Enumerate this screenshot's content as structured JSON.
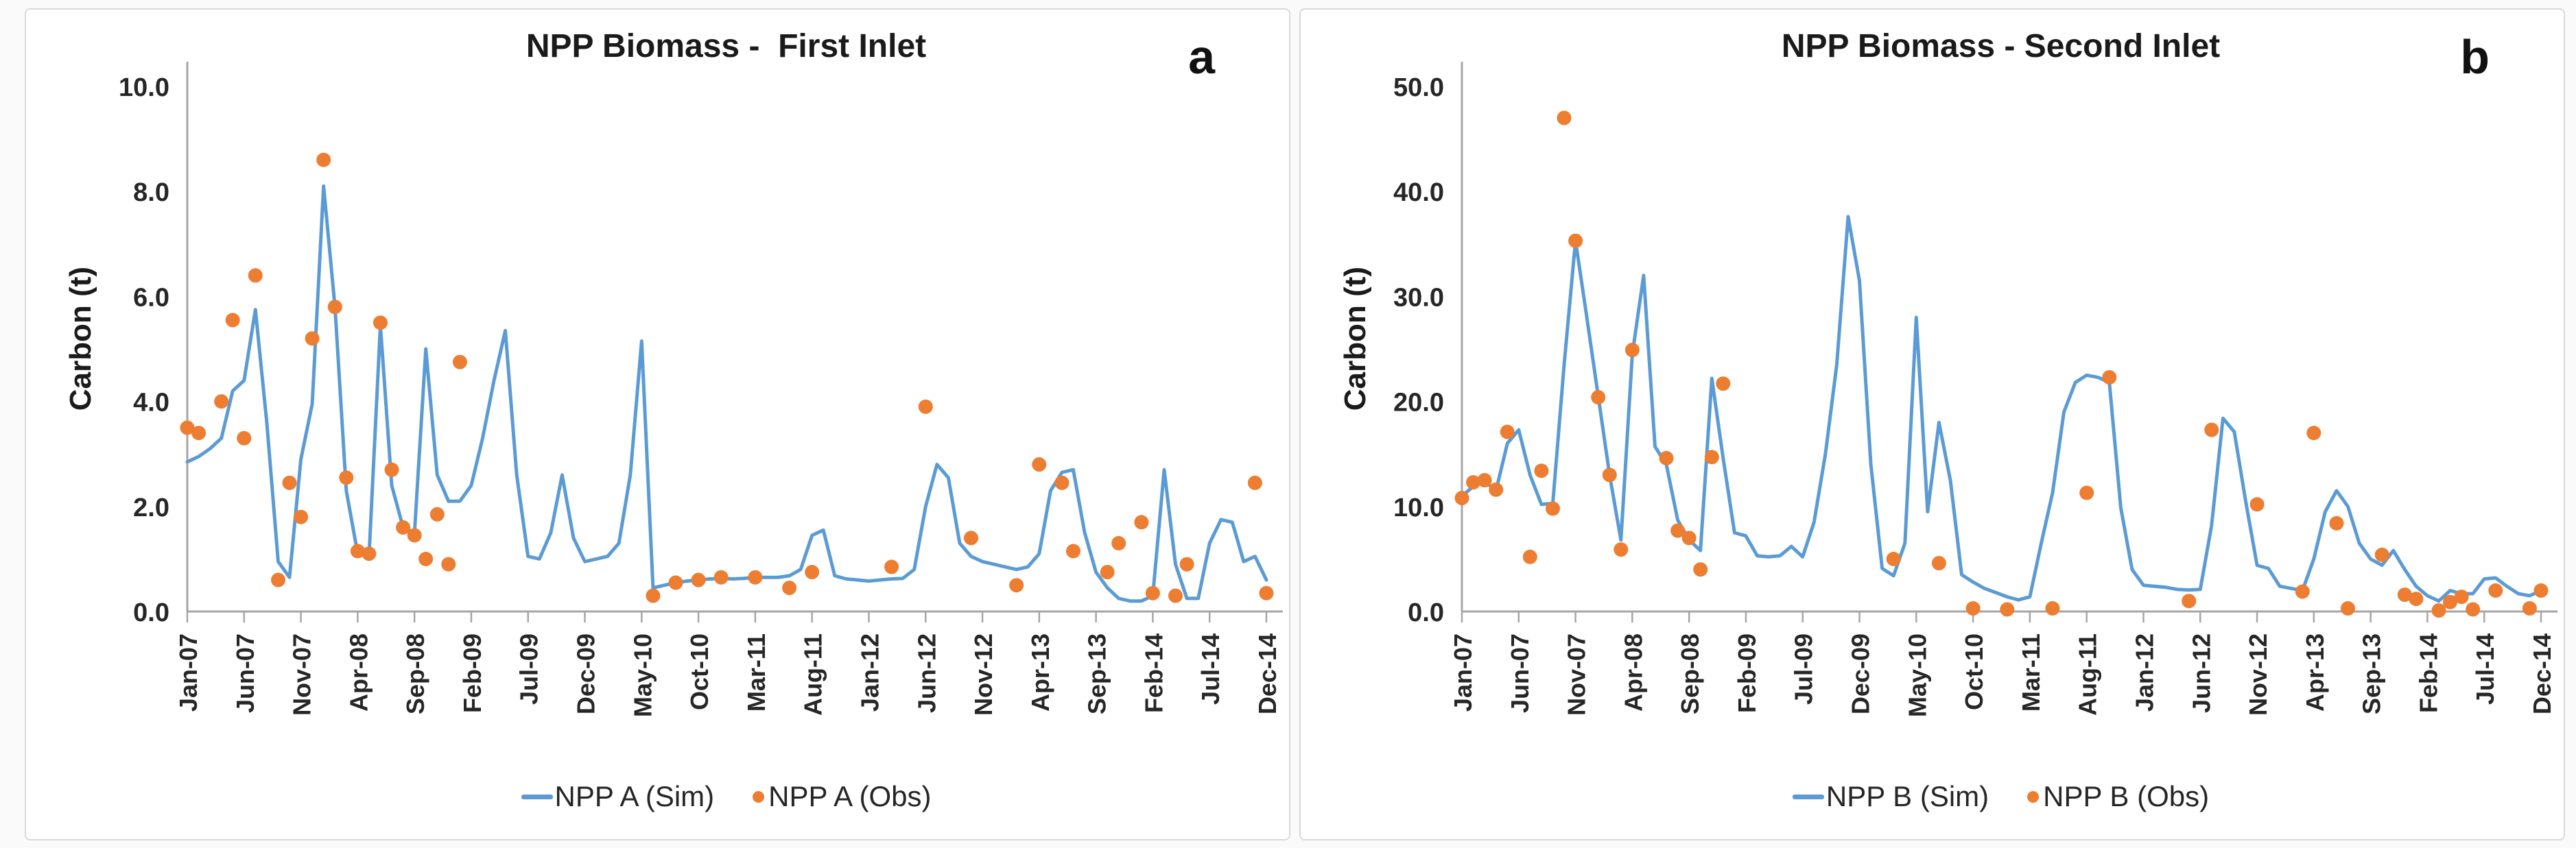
{
  "colors": {
    "sim_line": "#5B9BD5",
    "obs_dot": "#ED7D31",
    "axis": "#a6a6a6",
    "text": "#262626",
    "title_text": "#1a1a1a",
    "panel_border": "#d9d9d9",
    "panel_background": "#ffffff"
  },
  "chart_data": [
    {
      "type": "line+scatter",
      "panel_label": "a",
      "title": "NPP Biomass -  First Inlet",
      "xlabel": "",
      "ylabel": "Carbon (t)",
      "ylim": [
        0,
        10
      ],
      "y_tick_values": [
        0,
        2,
        4,
        6,
        8,
        10
      ],
      "y_ticks": [
        "0.0",
        "2.0",
        "4.0",
        "6.0",
        "8.0",
        "10.0"
      ],
      "x_tick_labels": [
        "Jan-07",
        "Jun-07",
        "Nov-07",
        "Apr-08",
        "Sep-08",
        "Feb-09",
        "Jul-09",
        "Dec-09",
        "May-10",
        "Oct-10",
        "Mar-11",
        "Aug-11",
        "Jan-12",
        "Jun-12",
        "Nov-12",
        "Apr-13",
        "Sep-13",
        "Feb-14",
        "Jul-14",
        "Dec-14"
      ],
      "grid": false,
      "legend_position": "bottom",
      "months": [
        "Jan-07",
        "Feb-07",
        "Mar-07",
        "Apr-07",
        "May-07",
        "Jun-07",
        "Jul-07",
        "Aug-07",
        "Sep-07",
        "Oct-07",
        "Nov-07",
        "Dec-07",
        "Jan-08",
        "Feb-08",
        "Mar-08",
        "Apr-08",
        "May-08",
        "Jun-08",
        "Jul-08",
        "Aug-08",
        "Sep-08",
        "Oct-08",
        "Nov-08",
        "Dec-08",
        "Jan-09",
        "Feb-09",
        "Mar-09",
        "Apr-09",
        "May-09",
        "Jun-09",
        "Jul-09",
        "Aug-09",
        "Sep-09",
        "Oct-09",
        "Nov-09",
        "Dec-09",
        "Jan-10",
        "Feb-10",
        "Mar-10",
        "Apr-10",
        "May-10",
        "Jun-10",
        "Jul-10",
        "Aug-10",
        "Sep-10",
        "Oct-10",
        "Nov-10",
        "Dec-10",
        "Jan-11",
        "Feb-11",
        "Mar-11",
        "Apr-11",
        "May-11",
        "Jun-11",
        "Jul-11",
        "Aug-11",
        "Sep-11",
        "Oct-11",
        "Nov-11",
        "Dec-11",
        "Jan-12",
        "Feb-12",
        "Mar-12",
        "Apr-12",
        "May-12",
        "Jun-12",
        "Jul-12",
        "Aug-12",
        "Sep-12",
        "Oct-12",
        "Nov-12",
        "Dec-12",
        "Jan-13",
        "Feb-13",
        "Mar-13",
        "Apr-13",
        "May-13",
        "Jun-13",
        "Jul-13",
        "Aug-13",
        "Sep-13",
        "Oct-13",
        "Nov-13",
        "Dec-13",
        "Jan-14",
        "Feb-14",
        "Mar-14",
        "Apr-14",
        "May-14",
        "Jun-14",
        "Jul-14",
        "Aug-14",
        "Sep-14",
        "Oct-14",
        "Nov-14",
        "Dec-14"
      ],
      "series": [
        {
          "name": "NPP A (Sim)",
          "type": "line",
          "color": "#5B9BD5",
          "values": [
            2.85,
            2.95,
            3.1,
            3.3,
            4.2,
            4.4,
            5.75,
            3.6,
            0.95,
            0.65,
            2.9,
            3.95,
            8.1,
            5.8,
            2.3,
            1.1,
            1.05,
            5.45,
            2.4,
            1.6,
            1.5,
            5.0,
            2.6,
            2.1,
            2.1,
            2.4,
            3.3,
            4.4,
            5.35,
            2.6,
            1.05,
            1.0,
            1.5,
            2.6,
            1.4,
            0.95,
            1.0,
            1.05,
            1.3,
            2.6,
            5.15,
            0.45,
            0.5,
            0.55,
            0.58,
            0.6,
            0.62,
            0.63,
            0.62,
            0.63,
            0.65,
            0.65,
            0.65,
            0.68,
            0.8,
            1.45,
            1.55,
            0.68,
            0.62,
            0.6,
            0.58,
            0.6,
            0.62,
            0.63,
            0.8,
            2.0,
            2.8,
            2.55,
            1.3,
            1.05,
            0.95,
            0.9,
            0.85,
            0.8,
            0.85,
            1.1,
            2.3,
            2.65,
            2.7,
            1.5,
            0.75,
            0.45,
            0.25,
            0.2,
            0.2,
            0.3,
            2.7,
            0.9,
            0.25,
            0.25,
            1.3,
            1.75,
            1.7,
            0.95,
            1.05,
            0.6
          ]
        },
        {
          "name": "NPP A (Obs)",
          "type": "scatter",
          "color": "#ED7D31",
          "points": [
            [
              "Jan-07",
              3.5
            ],
            [
              "Feb-07",
              3.4
            ],
            [
              "Apr-07",
              4.0
            ],
            [
              "May-07",
              5.55
            ],
            [
              "Jun-07",
              3.3
            ],
            [
              "Jul-07",
              6.4
            ],
            [
              "Sep-07",
              0.6
            ],
            [
              "Oct-07",
              2.45
            ],
            [
              "Nov-07",
              1.8
            ],
            [
              "Dec-07",
              5.2
            ],
            [
              "Jan-08",
              8.6
            ],
            [
              "Feb-08",
              5.8
            ],
            [
              "Mar-08",
              2.55
            ],
            [
              "Apr-08",
              1.15
            ],
            [
              "May-08",
              1.1
            ],
            [
              "Jun-08",
              5.5
            ],
            [
              "Jul-08",
              2.7
            ],
            [
              "Aug-08",
              1.6
            ],
            [
              "Sep-08",
              1.45
            ],
            [
              "Oct-08",
              1.0
            ],
            [
              "Nov-08",
              1.85
            ],
            [
              "Dec-08",
              0.9
            ],
            [
              "Jan-09",
              4.75
            ],
            [
              "Jun-10",
              0.3
            ],
            [
              "Aug-10",
              0.55
            ],
            [
              "Oct-10",
              0.6
            ],
            [
              "Dec-10",
              0.65
            ],
            [
              "Mar-11",
              0.65
            ],
            [
              "Jun-11",
              0.45
            ],
            [
              "Aug-11",
              0.75
            ],
            [
              "Mar-12",
              0.85
            ],
            [
              "Jun-12",
              3.9
            ],
            [
              "Oct-12",
              1.4
            ],
            [
              "Feb-13",
              0.5
            ],
            [
              "Apr-13",
              2.8
            ],
            [
              "Jun-13",
              2.45
            ],
            [
              "Jul-13",
              1.15
            ],
            [
              "Oct-13",
              0.75
            ],
            [
              "Nov-13",
              1.3
            ],
            [
              "Jan-14",
              1.7
            ],
            [
              "Feb-14",
              0.35
            ],
            [
              "Apr-14",
              0.3
            ],
            [
              "May-14",
              0.9
            ],
            [
              "Nov-14",
              2.45
            ],
            [
              "Dec-14",
              0.35
            ]
          ]
        }
      ]
    },
    {
      "type": "line+scatter",
      "panel_label": "b",
      "title": "NPP Biomass - Second Inlet",
      "xlabel": "",
      "ylabel": "Carbon (t)",
      "ylim": [
        0,
        50
      ],
      "y_tick_values": [
        0,
        10,
        20,
        30,
        40,
        50
      ],
      "y_ticks": [
        "0.0",
        "10.0",
        "20.0",
        "30.0",
        "40.0",
        "50.0"
      ],
      "x_tick_labels": [
        "Jan-07",
        "Jun-07",
        "Nov-07",
        "Apr-08",
        "Sep-08",
        "Feb-09",
        "Jul-09",
        "Dec-09",
        "May-10",
        "Oct-10",
        "Mar-11",
        "Aug-11",
        "Jan-12",
        "Jun-12",
        "Nov-12",
        "Apr-13",
        "Sep-13",
        "Feb-14",
        "Jul-14",
        "Dec-14"
      ],
      "grid": false,
      "legend_position": "bottom",
      "months": [
        "Jan-07",
        "Feb-07",
        "Mar-07",
        "Apr-07",
        "May-07",
        "Jun-07",
        "Jul-07",
        "Aug-07",
        "Sep-07",
        "Oct-07",
        "Nov-07",
        "Dec-07",
        "Jan-08",
        "Feb-08",
        "Mar-08",
        "Apr-08",
        "May-08",
        "Jun-08",
        "Jul-08",
        "Aug-08",
        "Sep-08",
        "Oct-08",
        "Nov-08",
        "Dec-08",
        "Jan-09",
        "Feb-09",
        "Mar-09",
        "Apr-09",
        "May-09",
        "Jun-09",
        "Jul-09",
        "Aug-09",
        "Sep-09",
        "Oct-09",
        "Nov-09",
        "Dec-09",
        "Jan-10",
        "Feb-10",
        "Mar-10",
        "Apr-10",
        "May-10",
        "Jun-10",
        "Jul-10",
        "Aug-10",
        "Sep-10",
        "Oct-10",
        "Nov-10",
        "Dec-10",
        "Jan-11",
        "Feb-11",
        "Mar-11",
        "Apr-11",
        "May-11",
        "Jun-11",
        "Jul-11",
        "Aug-11",
        "Sep-11",
        "Oct-11",
        "Nov-11",
        "Dec-11",
        "Jan-12",
        "Feb-12",
        "Mar-12",
        "Apr-12",
        "May-12",
        "Jun-12",
        "Jul-12",
        "Aug-12",
        "Sep-12",
        "Oct-12",
        "Nov-12",
        "Dec-12",
        "Jan-13",
        "Feb-13",
        "Mar-13",
        "Apr-13",
        "May-13",
        "Jun-13",
        "Jul-13",
        "Aug-13",
        "Sep-13",
        "Oct-13",
        "Nov-13",
        "Dec-13",
        "Jan-14",
        "Feb-14",
        "Mar-14",
        "Apr-14",
        "May-14",
        "Jun-14",
        "Jul-14",
        "Aug-14",
        "Sep-14",
        "Oct-14",
        "Nov-14",
        "Dec-14"
      ],
      "series": [
        {
          "name": "NPP B (Sim)",
          "type": "line",
          "color": "#5B9BD5",
          "values": [
            11.0,
            11.9,
            12.4,
            11.5,
            16.0,
            17.3,
            13.0,
            10.2,
            10.3,
            23.5,
            35.3,
            28.0,
            20.5,
            13.0,
            6.8,
            24.5,
            32.0,
            15.7,
            14.0,
            8.7,
            6.8,
            5.8,
            22.2,
            14.6,
            7.5,
            7.2,
            5.3,
            5.2,
            5.3,
            6.2,
            5.2,
            8.5,
            15.0,
            23.5,
            37.6,
            31.5,
            14.0,
            4.1,
            3.4,
            6.5,
            28.0,
            9.5,
            18.0,
            12.5,
            3.5,
            2.8,
            2.2,
            1.8,
            1.4,
            1.1,
            1.4,
            6.5,
            11.3,
            19.0,
            21.8,
            22.5,
            22.3,
            21.8,
            9.9,
            4.0,
            2.5,
            2.4,
            2.3,
            2.1,
            2.05,
            2.1,
            8.2,
            18.4,
            17.1,
            10.5,
            4.4,
            4.1,
            2.4,
            2.2,
            2.0,
            5.0,
            9.5,
            11.5,
            10.0,
            6.5,
            5.0,
            4.4,
            5.8,
            4.0,
            2.4,
            1.5,
            1.0,
            2.0,
            1.7,
            1.7,
            3.1,
            3.2,
            2.4,
            1.7,
            1.5,
            2.0
          ]
        },
        {
          "name": "NPP B (Obs)",
          "type": "scatter",
          "color": "#ED7D31",
          "points": [
            [
              "Jan-07",
              10.8
            ],
            [
              "Feb-07",
              12.3
            ],
            [
              "Mar-07",
              12.5
            ],
            [
              "Apr-07",
              11.6
            ],
            [
              "May-07",
              17.1
            ],
            [
              "Jul-07",
              5.2
            ],
            [
              "Aug-07",
              13.4
            ],
            [
              "Sep-07",
              9.8
            ],
            [
              "Oct-07",
              47.0
            ],
            [
              "Nov-07",
              35.3
            ],
            [
              "Jan-08",
              20.4
            ],
            [
              "Feb-08",
              13.0
            ],
            [
              "Mar-08",
              5.9
            ],
            [
              "Apr-08",
              24.9
            ],
            [
              "Jul-08",
              14.6
            ],
            [
              "Aug-08",
              7.7
            ],
            [
              "Sep-08",
              7.0
            ],
            [
              "Oct-08",
              4.0
            ],
            [
              "Nov-08",
              14.7
            ],
            [
              "Dec-08",
              21.7
            ],
            [
              "Mar-10",
              5.0
            ],
            [
              "Jul-10",
              4.6
            ],
            [
              "Oct-10",
              0.3
            ],
            [
              "Jan-11",
              0.2
            ],
            [
              "May-11",
              0.3
            ],
            [
              "Aug-11",
              11.3
            ],
            [
              "Oct-11",
              22.3
            ],
            [
              "May-12",
              1.0
            ],
            [
              "Jul-12",
              17.3
            ],
            [
              "Nov-12",
              10.2
            ],
            [
              "Mar-13",
              1.9
            ],
            [
              "Apr-13",
              17.0
            ],
            [
              "Jun-13",
              8.4
            ],
            [
              "Jul-13",
              0.3
            ],
            [
              "Oct-13",
              5.4
            ],
            [
              "Dec-13",
              1.6
            ],
            [
              "Jan-14",
              1.2
            ],
            [
              "Mar-14",
              0.1
            ],
            [
              "Apr-14",
              0.9
            ],
            [
              "May-14",
              1.4
            ],
            [
              "Jun-14",
              0.2
            ],
            [
              "Aug-14",
              2.0
            ],
            [
              "Nov-14",
              0.3
            ],
            [
              "Dec-14",
              2.0
            ]
          ]
        }
      ]
    }
  ]
}
